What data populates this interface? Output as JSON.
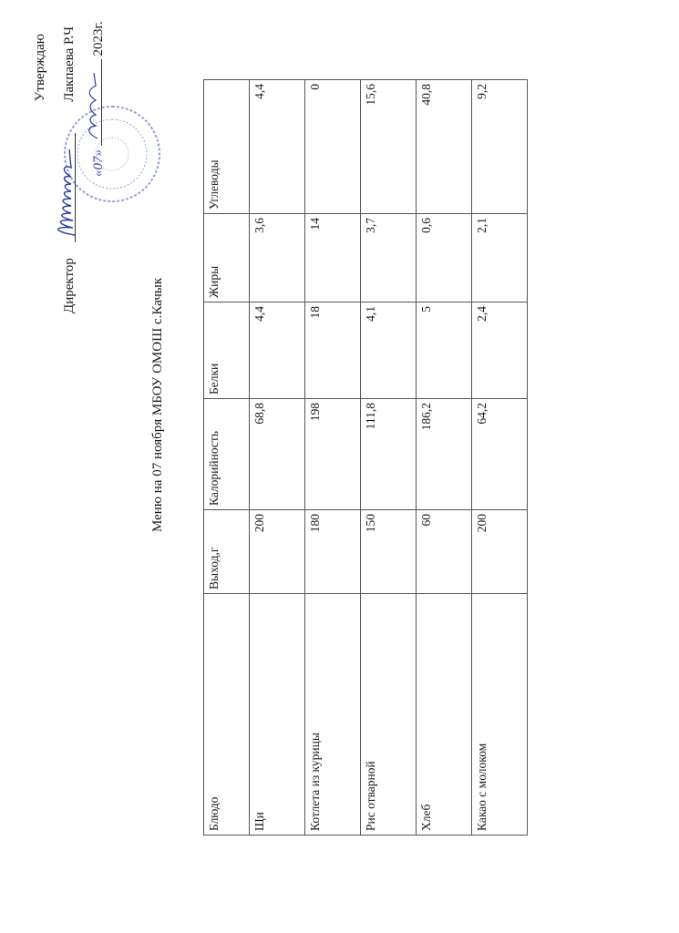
{
  "approval": {
    "approve_label": "Утверждаю",
    "director_label": "Директор",
    "director_name": "Лакпаева Р.Ч",
    "date_day": "«07»",
    "date_year": "2023г.",
    "stamp_color": "#3b56b0"
  },
  "title": "Меню на 07 ноября МБОУ ОМОШ с.Качык",
  "table": {
    "headers": [
      "Блюдо",
      "Выход,г",
      "Калорийность",
      "Белки",
      "Жиры",
      "Углеводы"
    ],
    "rows": [
      {
        "dish": "Щи",
        "yield": "200",
        "calories": "68,8",
        "protein": "4,4",
        "fat": "3,6",
        "carbs": "4,4"
      },
      {
        "dish": "Котлета из курицы",
        "yield": "180",
        "calories": "198",
        "protein": "18",
        "fat": "14",
        "carbs": "0"
      },
      {
        "dish": "Рис отварной",
        "yield": "150",
        "calories": "111,8",
        "protein": "4,1",
        "fat": "3,7",
        "carbs": "15,6"
      },
      {
        "dish": "Хлеб",
        "yield": "60",
        "calories": "186,2",
        "protein": "5",
        "fat": "0,6",
        "carbs": "40,8"
      },
      {
        "dish": "Какао с молоком",
        "yield": "200",
        "calories": "64,2",
        "protein": "2,4",
        "fat": "2,1",
        "carbs": "9,2"
      }
    ]
  }
}
